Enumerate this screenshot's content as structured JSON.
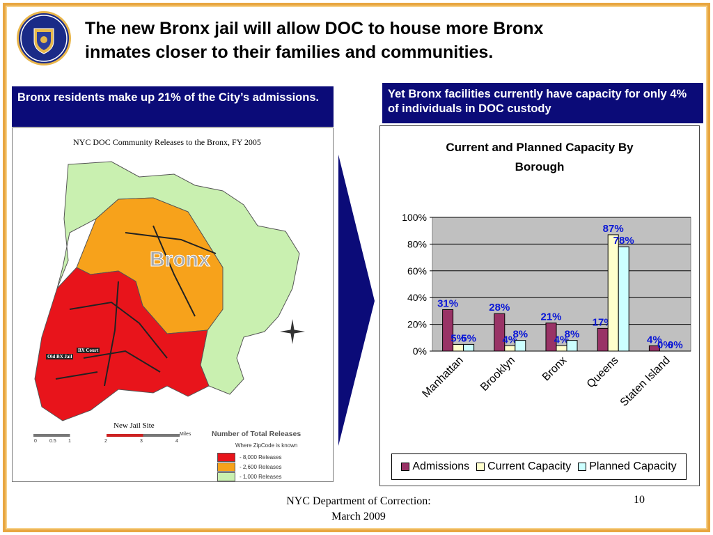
{
  "slide": {
    "title_line1": "The new Bronx jail will allow DOC to house more Bronx",
    "title_line2": "inmates closer to their families and communities.",
    "left_header": "Bronx residents make up 21% of the City’s admissions.",
    "right_header": "Yet Bronx facilities currently have capacity for only 4% of individuals in DOC custody",
    "footer_line1": "NYC Department of Correction:",
    "footer_line2": "March 2009",
    "page_number": "10"
  },
  "map": {
    "caption": "NYC DOC Community Releases to the Bronx, FY 2005",
    "borough_label": "Bronx",
    "old_jail_label": "Old BX Jail",
    "court_label": "BX Court",
    "new_site_label": "New Jail Site",
    "legend_title": "Number of Total Releases",
    "legend_subtitle": "Where ZipCode is known",
    "legend_rows": [
      {
        "label": "- 8,000 Releases",
        "color": "#e8141b"
      },
      {
        "label": "- 2,600 Releases",
        "color": "#f7a21b"
      },
      {
        "label": "- 1,000 Releases",
        "color": "#c9f0b0"
      }
    ],
    "scale_ticks": [
      "0",
      "0.5",
      "1",
      "2",
      "3",
      "4"
    ],
    "scale_unit": "Miles",
    "colors": {
      "high": "#e8141b",
      "mid": "#f7a21b",
      "low": "#c9f0b0"
    }
  },
  "chart_data": {
    "type": "bar",
    "title_line1": "Current and Planned Capacity By",
    "title_line2": "Borough",
    "categories": [
      "Manhattan",
      "Brooklyn",
      "Bronx",
      "Queens",
      "Staten Island"
    ],
    "series": [
      {
        "name": "Admissions",
        "values": [
          31,
          28,
          21,
          17,
          4
        ],
        "color": "#993366"
      },
      {
        "name": "Current Capacity",
        "values": [
          5,
          4,
          4,
          87,
          0
        ],
        "color": "#ffffcc"
      },
      {
        "name": "Planned Capacity",
        "values": [
          5,
          8,
          8,
          78,
          0
        ],
        "color": "#ccffff"
      }
    ],
    "data_labels": [
      [
        "31%",
        "28%",
        "21%",
        "17%",
        "4%"
      ],
      [
        "5%",
        "4%",
        "4%",
        "87%",
        "0%"
      ],
      [
        "5%",
        "8%",
        "8%",
        "78%",
        "0%"
      ]
    ],
    "yticks": [
      "0%",
      "20%",
      "40%",
      "60%",
      "80%",
      "100%"
    ],
    "ylim": [
      0,
      100
    ],
    "plot_bg": "#c0c0c0",
    "grid": true,
    "legend_position": "bottom"
  }
}
